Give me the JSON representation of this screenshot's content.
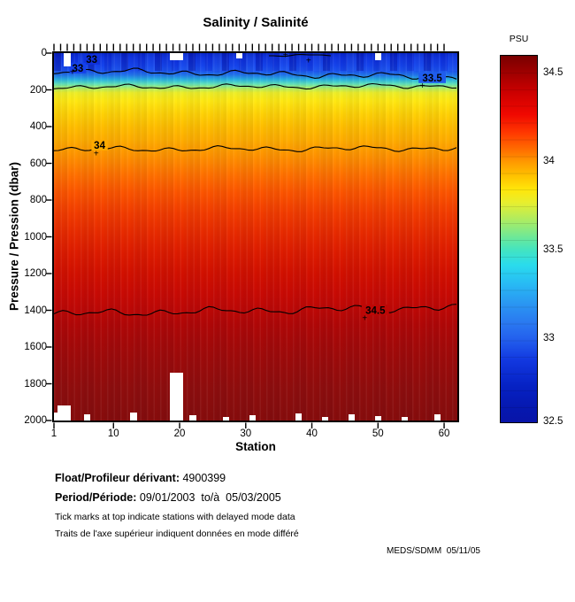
{
  "title": "Salinity / Salinité",
  "colorbar": {
    "title": "PSU"
  },
  "axes": {
    "y_label": "Pressure / Pression (dbar)",
    "x_label": "Station"
  },
  "footer": {
    "float_label": "Float/Profileur dérivant:",
    "float_value": " 4900399",
    "period_label": "Period/Période:",
    "period_value": " 09/01/2003  to/à  05/03/2005",
    "note_en": "Tick marks at top indicate stations with delayed mode data",
    "note_fr": "Traits de l'axe supérieur indiquent données en mode différé",
    "credit": "MEDS/SDMM  05/11/05"
  },
  "chart_data": {
    "type": "heatmap",
    "title": "Salinity / Salinité",
    "xlabel": "Station",
    "ylabel": "Pressure / Pression (dbar)",
    "x_range": [
      1,
      62
    ],
    "x_ticks": [
      "1",
      "10",
      "20",
      "30",
      "40",
      "50",
      "60"
    ],
    "x_tick_values": [
      1,
      10,
      20,
      30,
      40,
      50,
      60
    ],
    "y_range": [
      0,
      2000
    ],
    "y_ticks": [
      "0",
      "200",
      "400",
      "600",
      "800",
      "1000",
      "1200",
      "1400",
      "1600",
      "1800",
      "2000"
    ],
    "y_tick_values": [
      0,
      200,
      400,
      600,
      800,
      1000,
      1200,
      1400,
      1600,
      1800,
      2000
    ],
    "grid": false,
    "legend_position": "none",
    "colorbar": {
      "label": "PSU",
      "tick_labels": [
        "34.5",
        "34",
        "33.5",
        "33",
        "32.5"
      ],
      "tick_values": [
        34.5,
        34.0,
        33.5,
        33.0,
        32.5
      ],
      "vmin": 32.52,
      "vmax": 34.6,
      "colormap": "jet"
    },
    "delayed_mode_ticks": {
      "note": "one tick per station along top axis",
      "stations_from": 1,
      "stations_to": 60
    },
    "contours": [
      {
        "level": 32.5,
        "station_start": 33.5,
        "station_end": 43.5,
        "dbar_start": 12,
        "dbar_end": 12,
        "amp_dbar": 6,
        "seed": 5,
        "labels": [],
        "pluses": [
          {
            "station": 36.0,
            "dbar": 10
          },
          {
            "station": 39.5,
            "dbar": 38
          }
        ]
      },
      {
        "level": 33.0,
        "station_start": 1,
        "station_end": 62,
        "dbar_start": 95,
        "dbar_end": 130,
        "amp_dbar": 18,
        "seed": 1,
        "labels": [
          {
            "text": "33",
            "station": 6.7,
            "dbar": 33,
            "bg": "#0f31dc"
          },
          {
            "text": "33",
            "station": 4.6,
            "dbar": 81,
            "bg": "#1440ea"
          }
        ],
        "pluses": [
          {
            "station": 3.8,
            "dbar": 100
          }
        ]
      },
      {
        "level": 33.5,
        "station_start": 1,
        "station_end": 62,
        "dbar_start": 186,
        "dbar_end": 178,
        "amp_dbar": 14,
        "seed": 2,
        "labels": [
          {
            "text": "33.5",
            "station": 58.2,
            "dbar": 134,
            "bg": "#1f5cee"
          }
        ],
        "pluses": [
          {
            "station": 56.7,
            "dbar": 177
          }
        ]
      },
      {
        "level": 34.0,
        "station_start": 1,
        "station_end": 62,
        "dbar_start": 525,
        "dbar_end": 518,
        "amp_dbar": 16,
        "seed": 3,
        "labels": [
          {
            "text": "34",
            "station": 7.9,
            "dbar": 501,
            "bg": "#ffab00"
          }
        ],
        "pluses": [
          {
            "station": 7.4,
            "dbar": 544
          }
        ]
      },
      {
        "level": 34.5,
        "station_start": 1,
        "station_end": 62,
        "dbar_start": 1420,
        "dbar_end": 1382,
        "amp_dbar": 22,
        "seed": 4,
        "labels": [
          {
            "text": "34.5",
            "station": 49.6,
            "dbar": 1398,
            "bg": "#bd0806"
          }
        ],
        "pluses": [
          {
            "station": 48.0,
            "dbar": 1441
          }
        ]
      }
    ],
    "surface_gaps": [
      {
        "station": 3,
        "to_dbar": 70
      },
      {
        "station": 19,
        "to_dbar": 40
      },
      {
        "station": 20,
        "to_dbar": 40
      },
      {
        "station": 29,
        "to_dbar": 30
      },
      {
        "station": 50,
        "to_dbar": 40
      }
    ],
    "bottom_gaps": [
      {
        "station": 1,
        "from_dbar": 1955
      },
      {
        "station": 2,
        "from_dbar": 1920
      },
      {
        "station": 3,
        "from_dbar": 1920
      },
      {
        "station": 6,
        "from_dbar": 1965
      },
      {
        "station": 13,
        "from_dbar": 1955
      },
      {
        "station": 19,
        "from_dbar": 1740
      },
      {
        "station": 20,
        "from_dbar": 1740
      },
      {
        "station": 22,
        "from_dbar": 1970
      },
      {
        "station": 27,
        "from_dbar": 1980
      },
      {
        "station": 31,
        "from_dbar": 1970
      },
      {
        "station": 38,
        "from_dbar": 1960
      },
      {
        "station": 42,
        "from_dbar": 1980
      },
      {
        "station": 46,
        "from_dbar": 1965
      },
      {
        "station": 50,
        "from_dbar": 1975
      },
      {
        "station": 54,
        "from_dbar": 1980
      },
      {
        "station": 59,
        "from_dbar": 1965
      }
    ],
    "representative_profile_station_30": [
      [
        0,
        32.7
      ],
      [
        100,
        33.0
      ],
      [
        150,
        33.5
      ],
      [
        300,
        33.9
      ],
      [
        525,
        34.0
      ],
      [
        1000,
        34.3
      ],
      [
        1400,
        34.5
      ],
      [
        2000,
        34.6
      ]
    ]
  }
}
